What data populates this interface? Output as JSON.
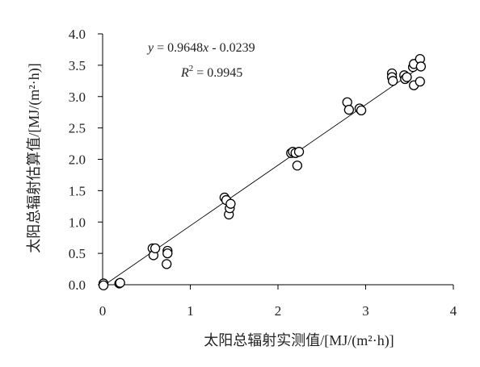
{
  "chart_data": {
    "type": "scatter",
    "xlabel": "太阳总辐射实测值/[MJ/(m²·h)]",
    "ylabel": "太阳总辐射估算值/[MJ/(m²·h)]",
    "xlim": [
      0,
      4
    ],
    "ylim": [
      0,
      4
    ],
    "xticks": [
      "0",
      "1",
      "2",
      "3",
      "4"
    ],
    "yticks": [
      "0.0",
      "0.5",
      "1.0",
      "1.5",
      "2.0",
      "2.5",
      "3.0",
      "3.5",
      "4.0"
    ],
    "grid": false,
    "annotations": {
      "equation_y": "y",
      "equation_rhs": " = 0.9648",
      "equation_x": "x",
      "equation_tail": " - 0.0239",
      "r2_label": "R",
      "r2_sup": "2",
      "r2_value": " = 0.9945"
    },
    "fit_line": {
      "slope": 0.9648,
      "intercept": -0.0239
    },
    "points": [
      {
        "x": 0.01,
        "y": 0.02
      },
      {
        "x": 0.01,
        "y": -0.01
      },
      {
        "x": 0.19,
        "y": 0.02
      },
      {
        "x": 0.2,
        "y": 0.03
      },
      {
        "x": 0.57,
        "y": 0.58
      },
      {
        "x": 0.58,
        "y": 0.47
      },
      {
        "x": 0.6,
        "y": 0.58
      },
      {
        "x": 0.73,
        "y": 0.33
      },
      {
        "x": 0.74,
        "y": 0.54
      },
      {
        "x": 0.74,
        "y": 0.5
      },
      {
        "x": 1.39,
        "y": 1.39
      },
      {
        "x": 1.41,
        "y": 1.35
      },
      {
        "x": 1.44,
        "y": 1.12
      },
      {
        "x": 1.45,
        "y": 1.22
      },
      {
        "x": 1.46,
        "y": 1.29
      },
      {
        "x": 2.15,
        "y": 2.1
      },
      {
        "x": 2.17,
        "y": 2.12
      },
      {
        "x": 2.2,
        "y": 2.1
      },
      {
        "x": 2.22,
        "y": 1.9
      },
      {
        "x": 2.24,
        "y": 2.12
      },
      {
        "x": 2.79,
        "y": 2.91
      },
      {
        "x": 2.81,
        "y": 2.79
      },
      {
        "x": 2.93,
        "y": 2.81
      },
      {
        "x": 2.95,
        "y": 2.78
      },
      {
        "x": 3.3,
        "y": 3.37
      },
      {
        "x": 3.3,
        "y": 3.31
      },
      {
        "x": 3.31,
        "y": 3.25
      },
      {
        "x": 3.44,
        "y": 3.34
      },
      {
        "x": 3.45,
        "y": 3.28
      },
      {
        "x": 3.47,
        "y": 3.31
      },
      {
        "x": 3.54,
        "y": 3.47
      },
      {
        "x": 3.55,
        "y": 3.52
      },
      {
        "x": 3.55,
        "y": 3.18
      },
      {
        "x": 3.62,
        "y": 3.6
      },
      {
        "x": 3.62,
        "y": 3.24
      },
      {
        "x": 3.63,
        "y": 3.48
      }
    ]
  }
}
